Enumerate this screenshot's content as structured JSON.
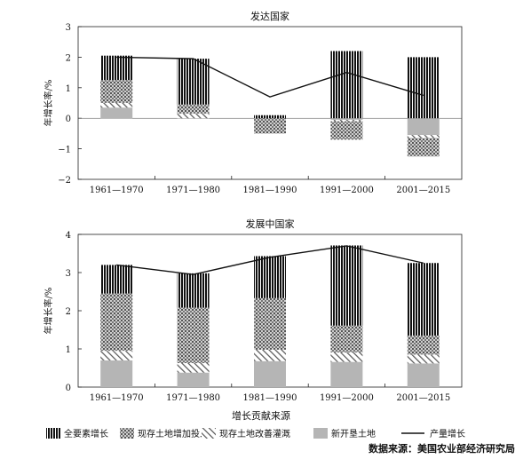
{
  "chart_data": [
    {
      "type": "bar",
      "stacked": true,
      "title": "发达国家",
      "ylabel": "年增长率/%",
      "ylim": [
        -2,
        3
      ],
      "yticks": [
        -2,
        -1,
        0,
        1,
        2,
        3
      ],
      "categories": [
        "1961—1970",
        "1971—1980",
        "1981—1990",
        "1991—2000",
        "2001—2015"
      ],
      "series": [
        {
          "name": "新开垦土地",
          "values": [
            0.35,
            0.0,
            0.0,
            -0.05,
            -0.55
          ]
        },
        {
          "name": "现存土地改善灌溉",
          "values": [
            0.15,
            0.15,
            0.0,
            -0.05,
            -0.1
          ]
        },
        {
          "name": "现存土地增加投入",
          "values": [
            0.75,
            0.3,
            -0.5,
            -0.6,
            -0.6
          ]
        },
        {
          "name": "全要素增长",
          "values": [
            0.8,
            1.5,
            0.1,
            2.2,
            2.0
          ]
        }
      ],
      "line": {
        "name": "产量增长",
        "values": [
          2.0,
          1.95,
          0.7,
          1.5,
          0.75
        ]
      }
    },
    {
      "type": "bar",
      "stacked": true,
      "title": "发展中国家",
      "ylabel": "年增长率/%",
      "ylim": [
        0,
        4
      ],
      "yticks": [
        0,
        1,
        2,
        3,
        4
      ],
      "categories": [
        "1961—1970",
        "1971—1980",
        "1981—1990",
        "1991—2000",
        "2001—2015"
      ],
      "series": [
        {
          "name": "新开垦土地",
          "values": [
            0.7,
            0.38,
            0.68,
            0.66,
            0.62
          ]
        },
        {
          "name": "现存土地改善灌溉",
          "values": [
            0.25,
            0.25,
            0.3,
            0.25,
            0.23
          ]
        },
        {
          "name": "现存土地增加投入",
          "values": [
            1.5,
            1.45,
            1.35,
            0.7,
            0.5
          ]
        },
        {
          "name": "全要素增长",
          "values": [
            0.75,
            0.9,
            1.1,
            2.1,
            1.9
          ]
        }
      ],
      "line": {
        "name": "产量增长",
        "values": [
          3.2,
          2.95,
          3.4,
          3.7,
          3.25
        ]
      }
    }
  ],
  "xlabel": "增长贡献来源",
  "legend": {
    "placement": "bottom",
    "items": [
      {
        "label": "全要素增长",
        "pattern": "vertical-stripes"
      },
      {
        "label": "现存土地增加投入",
        "pattern": "crosshatch"
      },
      {
        "label": "现存土地改善灌溉",
        "pattern": "diagonal"
      },
      {
        "label": "新开垦土地",
        "pattern": "solid-gray"
      },
      {
        "label": "产量增长",
        "pattern": "line"
      }
    ]
  },
  "source": "数据来源：美国农业部经济研究局"
}
